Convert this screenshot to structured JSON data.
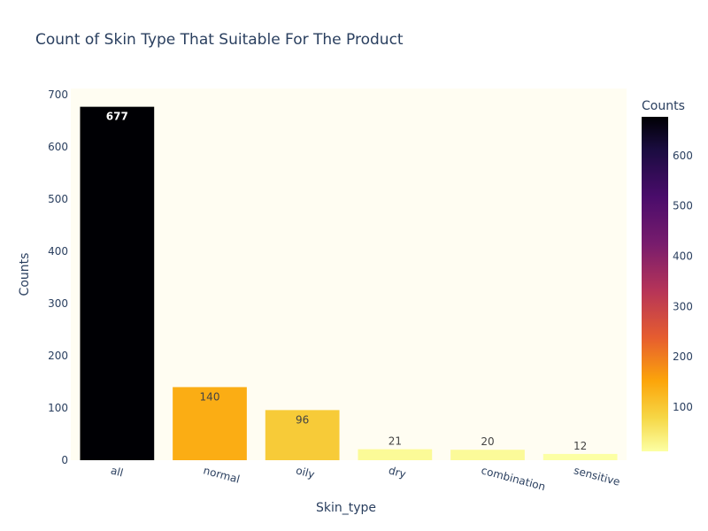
{
  "chart_data": {
    "type": "bar",
    "title": "Count of Skin Type That Suitable For The Product",
    "xlabel": "Skin_type",
    "ylabel": "Counts",
    "categories": [
      "all",
      "normal",
      "oily",
      "dry",
      "combination",
      "sensitive"
    ],
    "values": [
      677,
      140,
      96,
      21,
      20,
      12
    ],
    "ylim": [
      0,
      712
    ],
    "yticks": [
      "0",
      "100",
      "200",
      "300",
      "400",
      "500",
      "600",
      "700"
    ],
    "data_labels": [
      "677",
      "140",
      "96",
      "21",
      "20",
      "12"
    ],
    "grid": false,
    "plot_background": "#fffdf2",
    "colorscale": "Inferno (reversed)",
    "colorbar": {
      "title": "Counts",
      "range": [
        12,
        677
      ],
      "ticks": [
        "100",
        "200",
        "300",
        "400",
        "500",
        "600"
      ]
    }
  }
}
